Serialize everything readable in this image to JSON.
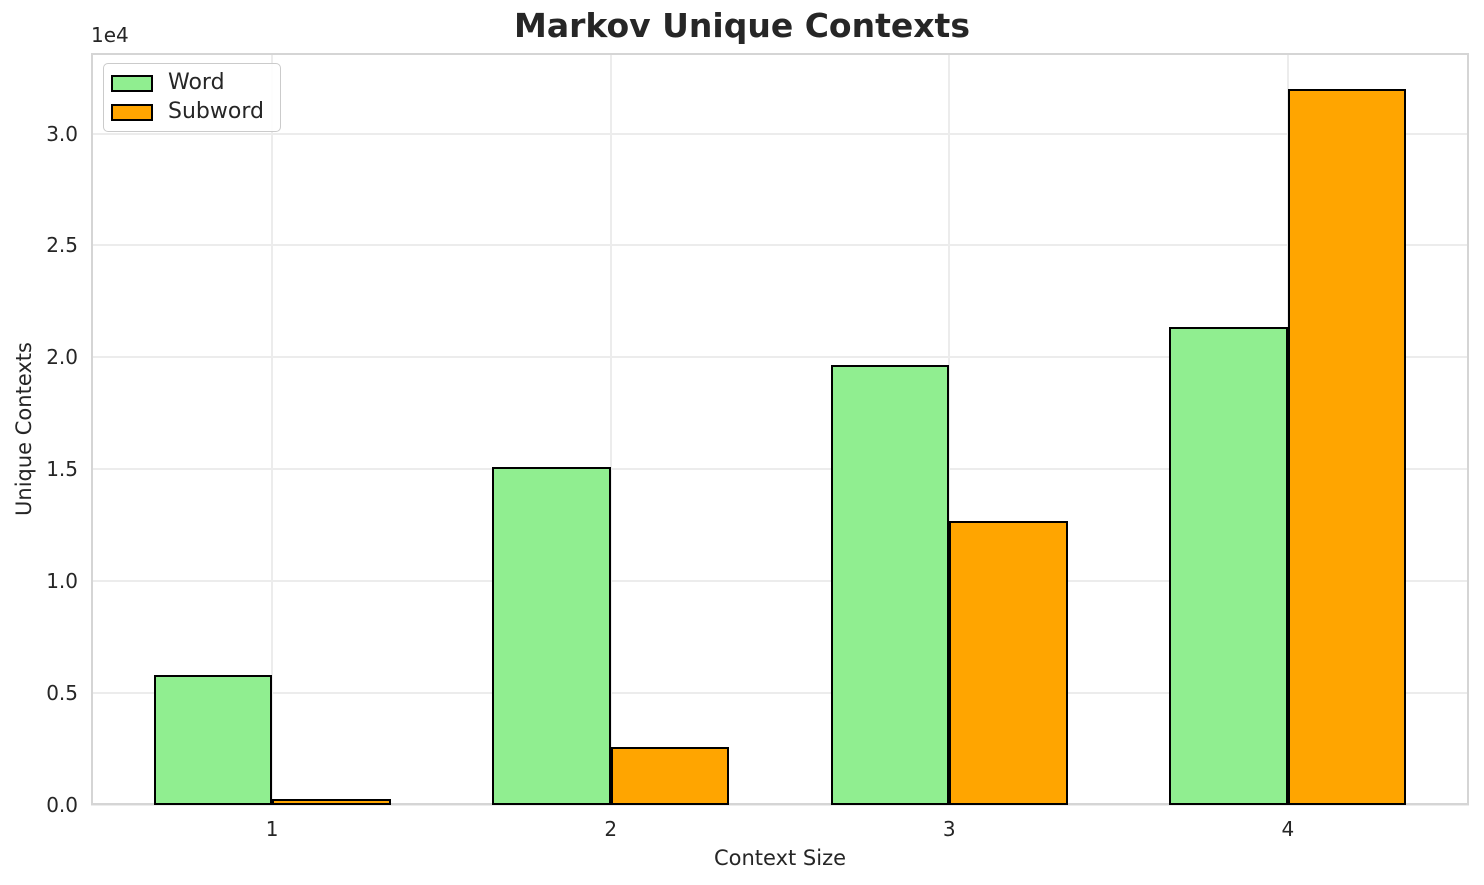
{
  "chart_data": {
    "type": "bar",
    "title": "Markov Unique Contexts",
    "xlabel": "Context Size",
    "ylabel": "Unique Contexts",
    "y_offset_text": "1e4",
    "categories": [
      "1",
      "2",
      "3",
      "4"
    ],
    "x_positions": [
      1,
      2,
      3,
      4
    ],
    "bar_width": 0.35,
    "series": [
      {
        "name": "Word",
        "color": "#90EE90",
        "values": [
          5800,
          15100,
          19650,
          21350
        ]
      },
      {
        "name": "Subword",
        "color": "#FFA500",
        "values": [
          280,
          2600,
          12700,
          32000
        ]
      }
    ],
    "edge_color": "#000000",
    "xlim": [
      0.465,
      4.535
    ],
    "ylim": [
      0,
      33600
    ],
    "yticks": {
      "values": [
        0,
        5000,
        10000,
        15000,
        20000,
        25000,
        30000
      ],
      "labels": [
        "0.0",
        "0.5",
        "1.0",
        "1.5",
        "2.0",
        "2.5",
        "3.0"
      ]
    },
    "grid": true,
    "legend_position": "upper left"
  }
}
